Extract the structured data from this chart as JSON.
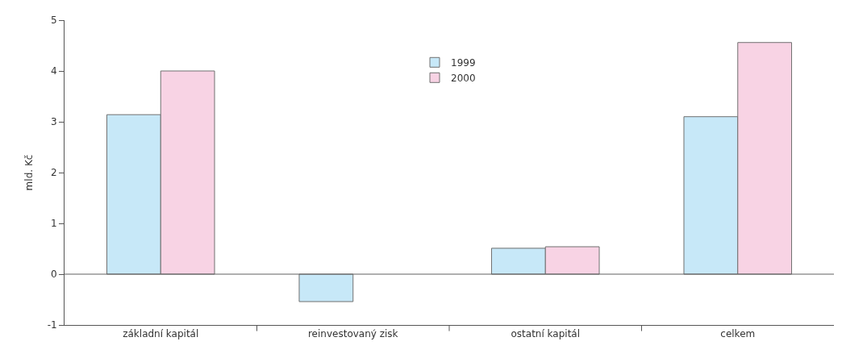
{
  "chart_data": {
    "type": "bar",
    "ylabel": "mld. Kč",
    "categories": [
      "základní kapitál",
      "reinvestovaný zisk",
      "ostatní kapitál",
      "celkem"
    ],
    "series": [
      {
        "name": "1999",
        "color": "#c7e8f8",
        "values": [
          3.14,
          -0.54,
          0.51,
          3.1
        ]
      },
      {
        "name": "2000",
        "color": "#f8d3e4",
        "values": [
          4.0,
          null,
          0.54,
          4.56
        ]
      }
    ],
    "ylim": [
      -1,
      5
    ],
    "yticks": [
      -1,
      0,
      1,
      2,
      3,
      4,
      5
    ],
    "legend": "top",
    "ref_lines": [
      {
        "axis": "y",
        "value": 0,
        "label": null,
        "color": "#606060"
      }
    ]
  }
}
